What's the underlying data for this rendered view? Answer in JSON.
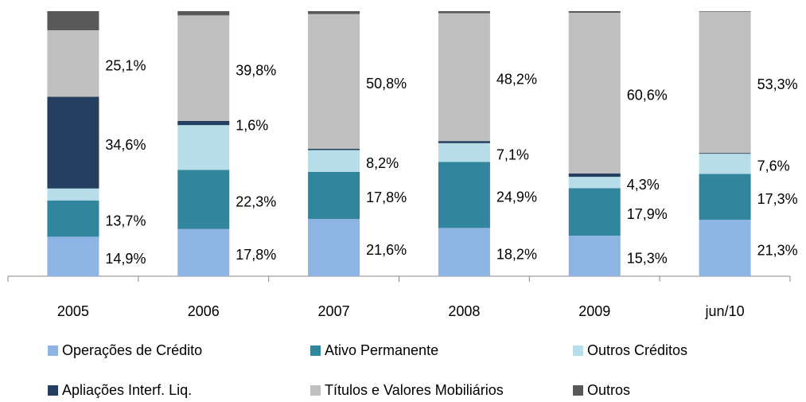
{
  "chart_data": {
    "type": "bar",
    "stacked": true,
    "categories": [
      "2005",
      "2006",
      "2007",
      "2008",
      "2009",
      "jun/10"
    ],
    "ylim": [
      0,
      100
    ],
    "series": [
      {
        "name": "Operações de Crédito",
        "color": "#8eb4e3",
        "values": [
          14.9,
          17.8,
          21.6,
          18.2,
          15.3,
          21.3
        ],
        "value_labels": [
          "14,9%",
          "17,8%",
          "21,6%",
          "18,2%",
          "15,3%",
          "21,3%"
        ]
      },
      {
        "name": "Ativo Permanente",
        "color": "#31859c",
        "values": [
          13.7,
          22.3,
          17.8,
          24.9,
          17.9,
          17.3
        ],
        "value_labels": [
          "13,7%",
          "22,3%",
          "17,8%",
          "24,9%",
          "17,9%",
          "17,3%"
        ]
      },
      {
        "name": "Outros Créditos",
        "color": "#b7dee8",
        "values": [
          4.5,
          16.9,
          8.2,
          7.1,
          4.3,
          7.6
        ],
        "value_labels": [
          null,
          null,
          "8,2%",
          "7,1%",
          "4,3%",
          "7,6%"
        ]
      },
      {
        "name": "Apliações Interf. Liq.",
        "color": "#243f60",
        "values": [
          34.6,
          1.6,
          0.5,
          0.8,
          1.3,
          0.3
        ],
        "value_labels": [
          "34,6%",
          "1,6%",
          null,
          null,
          null,
          null
        ]
      },
      {
        "name": "Títulos e Valores Mobiliários",
        "color": "#bfbfbf",
        "values": [
          25.1,
          39.8,
          50.8,
          48.2,
          60.6,
          53.3
        ],
        "value_labels": [
          "25,1%",
          "39,8%",
          "50,8%",
          "48,2%",
          "60,6%",
          "53,3%"
        ]
      },
      {
        "name": "Outros",
        "color": "#595959",
        "values": [
          7.2,
          1.6,
          1.1,
          0.8,
          0.6,
          0.2
        ],
        "value_labels": [
          null,
          null,
          null,
          null,
          null,
          null
        ]
      }
    ]
  }
}
